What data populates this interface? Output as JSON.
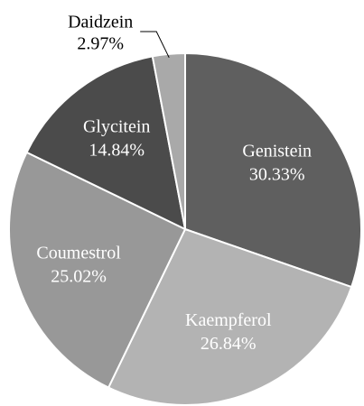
{
  "chart_data": {
    "type": "pie",
    "categories": [
      "Genistein",
      "Kaempferol",
      "Coumestrol",
      "Glycitein",
      "Daidzein"
    ],
    "values": [
      30.33,
      26.84,
      25.02,
      14.84,
      2.97
    ],
    "value_labels": [
      "30.33%",
      "26.84%",
      "25.02%",
      "14.84%",
      "2.97%"
    ],
    "colors": [
      "#5f5f5f",
      "#b3b3b3",
      "#989898",
      "#4b4b4b",
      "#a9a9a9"
    ]
  }
}
